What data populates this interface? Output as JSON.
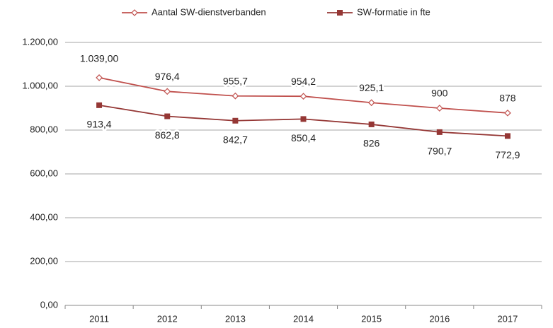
{
  "chart_data": {
    "type": "line",
    "categories": [
      "2011",
      "2012",
      "2013",
      "2014",
      "2015",
      "2016",
      "2017"
    ],
    "series": [
      {
        "name": "Aantal SW-dienstverbanden",
        "color": "#c0504d",
        "marker": "diamond",
        "values": [
          1039,
          976.4,
          955.7,
          954.2,
          925.1,
          900,
          878
        ],
        "value_labels": [
          "1.039,00",
          "976,4",
          "955,7",
          "954,2",
          "925,1",
          "900",
          "878"
        ]
      },
      {
        "name": "SW-formatie in fte",
        "color": "#953735",
        "marker": "square",
        "values": [
          913.4,
          862.8,
          842.7,
          850.4,
          826,
          790.7,
          772.9
        ],
        "value_labels": [
          "913,4",
          "862,8",
          "842,7",
          "850,4",
          "826",
          "790,7",
          "772,9"
        ]
      }
    ],
    "ylim": [
      0,
      1200
    ],
    "yticks": [
      {
        "value": 0,
        "label": "0,00"
      },
      {
        "value": 200,
        "label": "200,00"
      },
      {
        "value": 400,
        "label": "400,00"
      },
      {
        "value": 600,
        "label": "600,00"
      },
      {
        "value": 800,
        "label": "800,00"
      },
      {
        "value": 1000,
        "label": "1.000,00"
      },
      {
        "value": 1200,
        "label": "1.200,00"
      }
    ],
    "grid": true,
    "legend": "top"
  }
}
